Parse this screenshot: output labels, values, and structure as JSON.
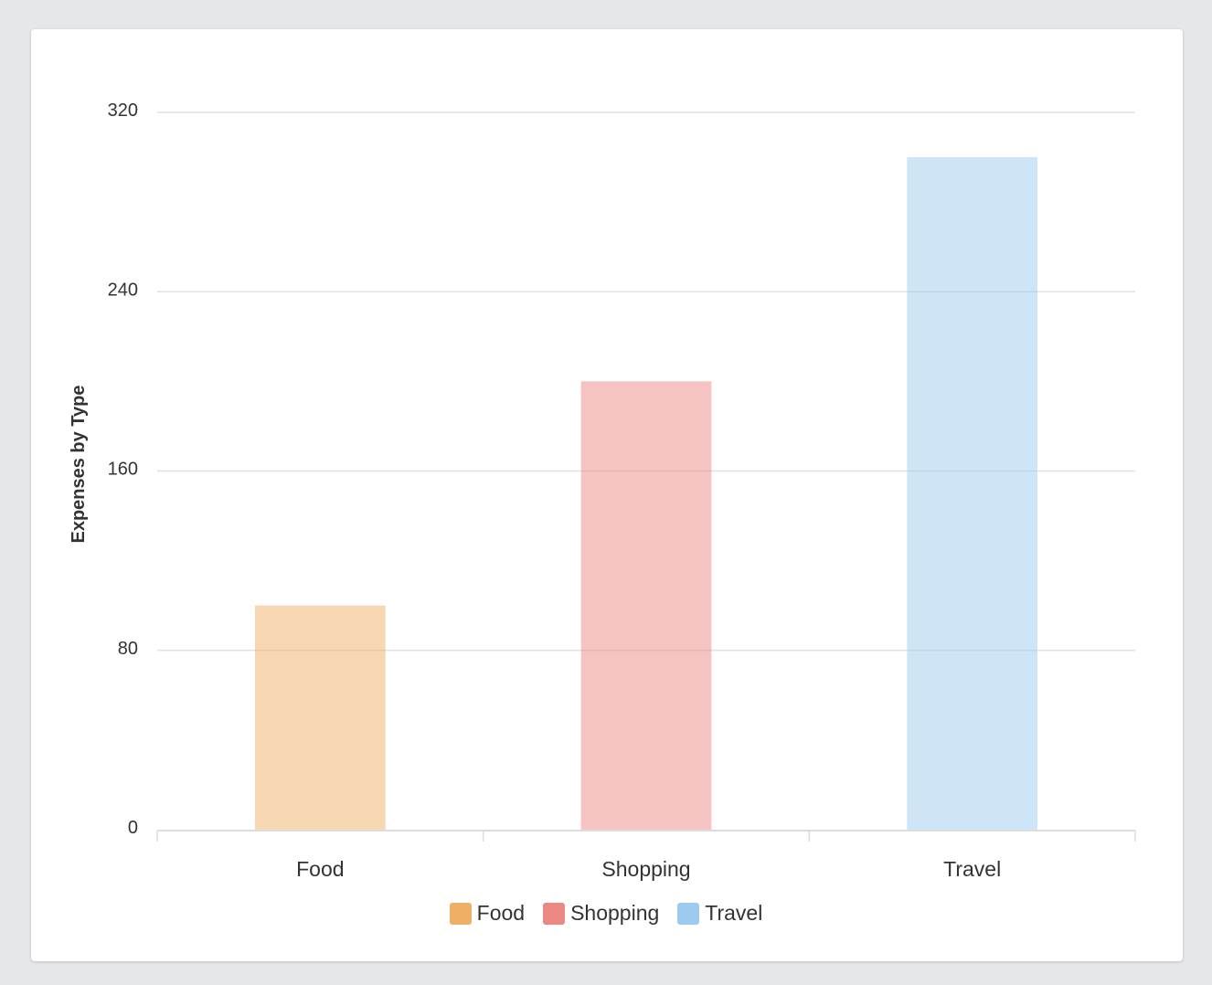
{
  "chart_data": {
    "type": "bar",
    "categories": [
      "Food",
      "Shopping",
      "Travel"
    ],
    "values": [
      100,
      200,
      300
    ],
    "colors": [
      "#edaf63",
      "#eb8884",
      "#9dcbf0"
    ],
    "title": "",
    "xlabel": "",
    "ylabel": "Expenses by Type",
    "ylim": [
      0,
      320
    ],
    "yticks": [
      0,
      80,
      160,
      240,
      320
    ],
    "grid": true,
    "legend": {
      "placement": "bottom",
      "entries": [
        "Food",
        "Shopping",
        "Travel"
      ]
    }
  }
}
